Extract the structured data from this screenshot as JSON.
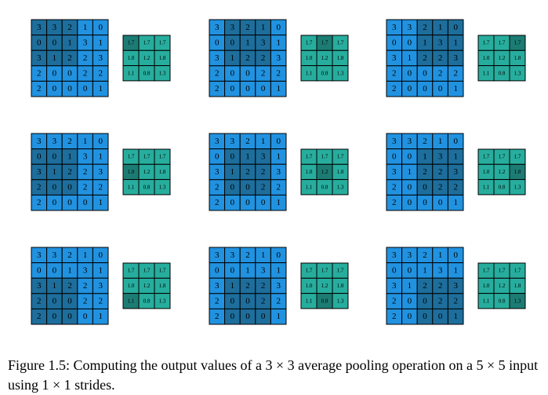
{
  "input": [
    [
      3,
      3,
      2,
      1,
      0
    ],
    [
      0,
      0,
      1,
      3,
      1
    ],
    [
      3,
      1,
      2,
      2,
      3
    ],
    [
      2,
      0,
      0,
      2,
      2
    ],
    [
      2,
      0,
      0,
      0,
      1
    ]
  ],
  "output": [
    [
      "1.7",
      "1.7",
      "1.7"
    ],
    [
      "1.0",
      "1.2",
      "1.8"
    ],
    [
      "1.1",
      "0.8",
      "1.3"
    ]
  ],
  "caption": "Figure 1.5: Computing the output values of a 3 × 3 average pooling operation on a 5 × 5 input using 1 × 1 strides."
}
